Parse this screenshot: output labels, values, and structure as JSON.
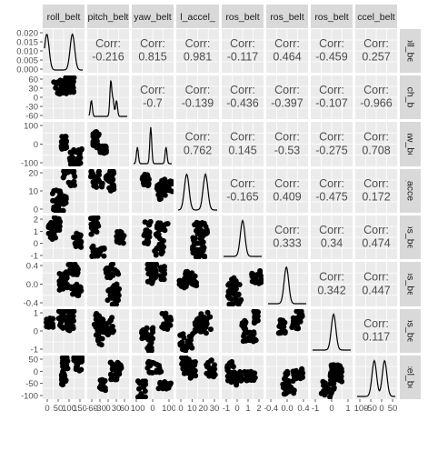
{
  "chart_data": {
    "type": "scatter",
    "kind": "pairs-matrix",
    "variables": [
      "roll_belt",
      "pitch_belt",
      "yaw_belt",
      "total_accel_belt",
      "gyros_belt_x",
      "gyros_belt_y",
      "gyros_belt_z",
      "accel_belt_x"
    ],
    "strip_labels": [
      "roll_belt",
      "pitch_belt",
      "yaw_belt",
      "l_accel_",
      "ros_belt",
      "ros_belt",
      "ros_belt",
      "ccel_belt"
    ],
    "correlation_label": "Corr:",
    "correlations": [
      [
        "-0.216",
        "0.815",
        "0.981",
        "-0.117",
        "0.464",
        "-0.459",
        "0.257"
      ],
      [
        "-0.7",
        "-0.139",
        "-0.436",
        "-0.397",
        "-0.107",
        "-0.966"
      ],
      [
        "0.762",
        "0.145",
        "-0.53",
        "-0.275",
        "0.708"
      ],
      [
        "-0.165",
        "0.409",
        "-0.475",
        "0.172"
      ],
      [
        "0.333",
        "0.34",
        "0.474"
      ],
      [
        "0.342",
        "0.447"
      ],
      [
        "0.117"
      ]
    ],
    "y_ticks": [
      [
        "0.020",
        "0.015",
        "0.010",
        "0.005",
        "0.000"
      ],
      [
        "60",
        "30",
        "0",
        "-30",
        "-60"
      ],
      [
        "100",
        "0",
        "-100"
      ],
      [
        "20",
        "10",
        "0"
      ],
      [
        "2",
        "1",
        "0",
        "-1"
      ],
      [
        "0.4",
        "0.0",
        "-0.4"
      ],
      [
        "1",
        "0",
        "-1"
      ],
      [
        "50",
        "0",
        "-50",
        "-100"
      ]
    ],
    "x_ticks": [
      [
        "0",
        "50",
        "100",
        "150"
      ],
      [
        "-60",
        "-30",
        "0",
        "30",
        "60"
      ],
      [
        "-100",
        "0",
        "100"
      ],
      [
        "0",
        "10",
        "20",
        "30"
      ],
      [
        "-1",
        "0",
        "1",
        "2"
      ],
      [
        "-0.4",
        "0.0",
        "0.4"
      ],
      [
        "-1",
        "0",
        "1"
      ],
      [
        "-100",
        "-50",
        "0",
        "50"
      ]
    ],
    "density_peaks": [
      [
        0.06,
        0.73
      ],
      [
        0.06,
        0.57,
        0.63,
        0.72
      ],
      [
        0.1,
        0.45,
        0.85
      ],
      [
        0.22,
        0.7
      ],
      [
        0.5
      ],
      [
        0.48
      ],
      [
        0.55
      ],
      [
        0.45,
        0.72
      ]
    ],
    "grid": true,
    "panel_background": "#ebebeb",
    "strip_background": "#d9d9d9",
    "point_color": "#000000"
  }
}
